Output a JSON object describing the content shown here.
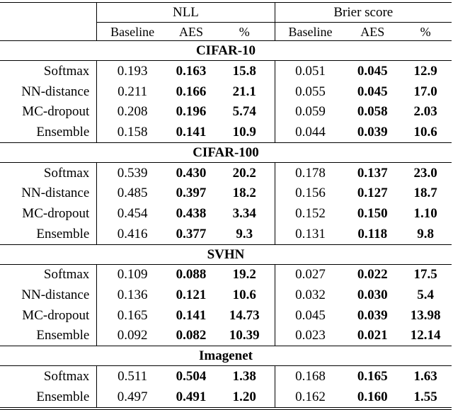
{
  "header": {
    "nll": "NLL",
    "brier": "Brier score",
    "sub": [
      "Baseline",
      "AES",
      "%",
      "Baseline",
      "AES",
      "%"
    ]
  },
  "sections": [
    {
      "name": "CIFAR-10",
      "rows": [
        {
          "method": "Softmax",
          "v": [
            "0.193",
            "0.163",
            "15.8",
            "0.051",
            "0.045",
            "12.9"
          ]
        },
        {
          "method": "NN-distance",
          "v": [
            "0.211",
            "0.166",
            "21.1",
            "0.055",
            "0.045",
            "17.0"
          ]
        },
        {
          "method": "MC-dropout",
          "v": [
            "0.208",
            "0.196",
            "5.74",
            "0.059",
            "0.058",
            "2.03"
          ]
        },
        {
          "method": "Ensemble",
          "v": [
            "0.158",
            "0.141",
            "10.9",
            "0.044",
            "0.039",
            "10.6"
          ]
        }
      ]
    },
    {
      "name": "CIFAR-100",
      "rows": [
        {
          "method": "Softmax",
          "v": [
            "0.539",
            "0.430",
            "20.2",
            "0.178",
            "0.137",
            "23.0"
          ]
        },
        {
          "method": "NN-distance",
          "v": [
            "0.485",
            "0.397",
            "18.2",
            "0.156",
            "0.127",
            "18.7"
          ]
        },
        {
          "method": "MC-dropout",
          "v": [
            "0.454",
            "0.438",
            "3.34",
            "0.152",
            "0.150",
            "1.10"
          ]
        },
        {
          "method": "Ensemble",
          "v": [
            "0.416",
            "0.377",
            "9.3",
            "0.131",
            "0.118",
            "9.8"
          ]
        }
      ]
    },
    {
      "name": "SVHN",
      "rows": [
        {
          "method": "Softmax",
          "v": [
            "0.109",
            "0.088",
            "19.2",
            "0.027",
            "0.022",
            "17.5"
          ]
        },
        {
          "method": "NN-distance",
          "v": [
            "0.136",
            "0.121",
            "10.6",
            "0.032",
            "0.030",
            "5.4"
          ]
        },
        {
          "method": "MC-dropout",
          "v": [
            "0.165",
            "0.141",
            "14.73",
            "0.045",
            "0.039",
            "13.98"
          ]
        },
        {
          "method": "Ensemble",
          "v": [
            "0.092",
            "0.082",
            "10.39",
            "0.023",
            "0.021",
            "12.14"
          ]
        }
      ]
    },
    {
      "name": "Imagenet",
      "rows": [
        {
          "method": "Softmax",
          "v": [
            "0.511",
            "0.504",
            "1.38",
            "0.168",
            "0.165",
            "1.63"
          ]
        },
        {
          "method": "Ensemble",
          "v": [
            "0.497",
            "0.491",
            "1.20",
            "0.162",
            "0.160",
            "1.55"
          ]
        }
      ]
    }
  ]
}
